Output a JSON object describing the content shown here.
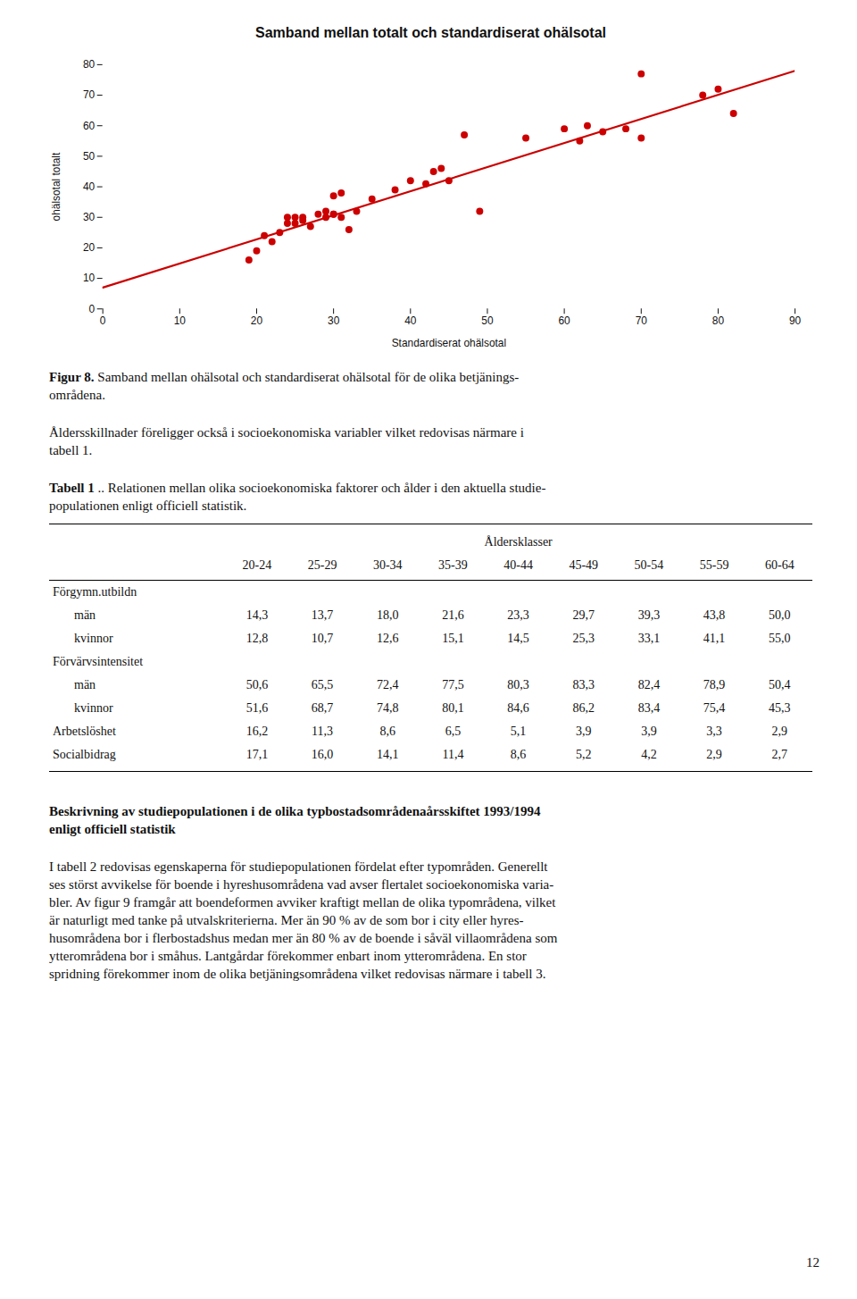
{
  "chart_data": {
    "type": "scatter",
    "title": "Samband mellan totalt och standardiserat ohälsotal",
    "x_label": "Standardiserat ohälsotal",
    "y_label": "ohälsotal totalt",
    "series": [
      {
        "type": "scatter",
        "color": "#cc0000",
        "x": [
          19,
          20,
          21,
          22,
          23,
          24,
          24,
          25,
          25,
          26,
          26,
          27,
          28,
          29,
          29,
          30,
          30,
          30,
          31,
          31,
          32,
          33,
          35,
          38,
          40,
          42,
          43,
          44,
          45,
          47,
          49,
          55,
          60,
          62,
          63,
          65,
          68,
          70,
          70,
          78,
          80,
          82
        ],
        "values": [
          16,
          19,
          24,
          22,
          25,
          28,
          30,
          28,
          30,
          30,
          29,
          27,
          31,
          30,
          32,
          31,
          31,
          37,
          38,
          30,
          26,
          32,
          36,
          39,
          42,
          41,
          45,
          46,
          42,
          57,
          32,
          56,
          59,
          55,
          60,
          58,
          59,
          77,
          56,
          70,
          72,
          64
        ]
      },
      {
        "type": "line",
        "color": "#cc0000",
        "x": [
          0,
          90
        ],
        "values": [
          7,
          78
        ]
      }
    ],
    "xlim": [
      0,
      90
    ],
    "ylim": [
      0,
      80
    ],
    "xticks": [
      0,
      10,
      20,
      30,
      40,
      50,
      60,
      70,
      80,
      90
    ],
    "yticks": [
      0,
      10,
      20,
      30,
      40,
      50,
      60,
      70,
      80
    ]
  },
  "page_text": {
    "figure_caption": {
      "bold": "Figur 8.",
      "lines": [
        "Samband mellan ohälsotal och standardiserat ohälsotal för de olika betjänings-",
        "områdena."
      ]
    },
    "paragraph": [
      "Åldersskillnader föreligger också i socioekonomiska variabler vilket redovisas närmare i",
      "tabell 1."
    ],
    "table_caption": {
      "bold": "Tabell 1",
      "lines": [
        ".. Relationen mellan olika socioekonomiska faktorer och ålder i den aktuella studie-",
        "populationen enligt officiell statistik."
      ]
    },
    "table": {
      "header": "Åldersklasser",
      "columns": [
        "20-24",
        "25-29",
        "30-34",
        "35-39",
        "40-44",
        "45-49",
        "50-54",
        "55-59",
        "60-64"
      ],
      "groups": [
        {
          "label": "Förgymn.utbildn",
          "rows": [
            {
              "label": "män",
              "values": [
                14.3,
                13.7,
                18.0,
                21.6,
                23.3,
                29.7,
                39.3,
                43.8,
                50.0
              ],
              "value_labels": [
                "14,3",
                "13,7",
                "18,0",
                "21,6",
                "23,3",
                "29,7",
                "39,3",
                "43,8",
                "50,0"
              ]
            },
            {
              "label": "kvinnor",
              "values": [
                12.8,
                10.7,
                12.6,
                15.1,
                14.5,
                25.3,
                33.1,
                41.1,
                55.0
              ],
              "value_labels": [
                "12,8",
                "10,7",
                "12,6",
                "15,1",
                "14,5",
                "25,3",
                "33,1",
                "41,1",
                "55,0"
              ]
            }
          ]
        },
        {
          "label": "Förvärvsintensitet",
          "rows": [
            {
              "label": "män",
              "values": [
                50.6,
                65.5,
                72.4,
                77.5,
                80.3,
                83.3,
                82.4,
                78.9,
                50.4
              ],
              "value_labels": [
                "50,6",
                "65,5",
                "72,4",
                "77,5",
                "80,3",
                "83,3",
                "82,4",
                "78,9",
                "50,4"
              ]
            },
            {
              "label": "kvinnor",
              "values": [
                51.6,
                68.7,
                74.8,
                80.1,
                84.6,
                86.2,
                83.4,
                75.4,
                45.3
              ],
              "value_labels": [
                "51,6",
                "68,7",
                "74,8",
                "80,1",
                "84,6",
                "86,2",
                "83,4",
                "75,4",
                "45,3"
              ]
            }
          ]
        },
        {
          "label": "Arbetslöshet",
          "values": [
            16.2,
            11.3,
            8.6,
            6.5,
            5.1,
            3.9,
            3.9,
            3.3,
            2.9
          ],
          "value_labels": [
            "16,2",
            "11,3",
            "8,6",
            "6,5",
            "5,1",
            "3,9",
            "3,9",
            "3,3",
            "2,9"
          ]
        },
        {
          "label": "Socialbidrag",
          "values": [
            17.1,
            16.0,
            14.1,
            11.4,
            8.6,
            5.2,
            4.2,
            2.9,
            2.7
          ],
          "value_labels": [
            "17,1",
            "16,0",
            "14,1",
            "11,4",
            "8,6",
            "5,2",
            "4,2",
            "2,9",
            "2,7"
          ]
        }
      ]
    },
    "section_heading": [
      "Beskrivning av studiepopulationen i de olika typbostadsområdenaårsskiftet 1993/1994",
      "enligt officiell statistik"
    ],
    "body_text": [
      "I tabell 2 redovisas egenskaperna för studiepopulationen fördelat efter typområden. Generellt",
      "ses störst avvikelse för boende i hyreshusområdena vad avser flertalet socioekonomiska varia-",
      "bler. Av figur 9 framgår att boendeformen avviker kraftigt mellan de olika typområdena, vilket",
      "är naturligt med tanke på utvalskriterierna. Mer än 90 % av de som bor i city eller hyres-",
      "husområdena bor i flerbostadshus medan mer än 80 % av de boende i såväl villaområdena som",
      "ytterområdena bor i småhus. Lantgårdar förekommer enbart inom ytterområdena. En stor",
      "spridning förekommer inom de olika betjäningsområdena vilket redovisas närmare i tabell 3."
    ],
    "page_number": "12"
  }
}
